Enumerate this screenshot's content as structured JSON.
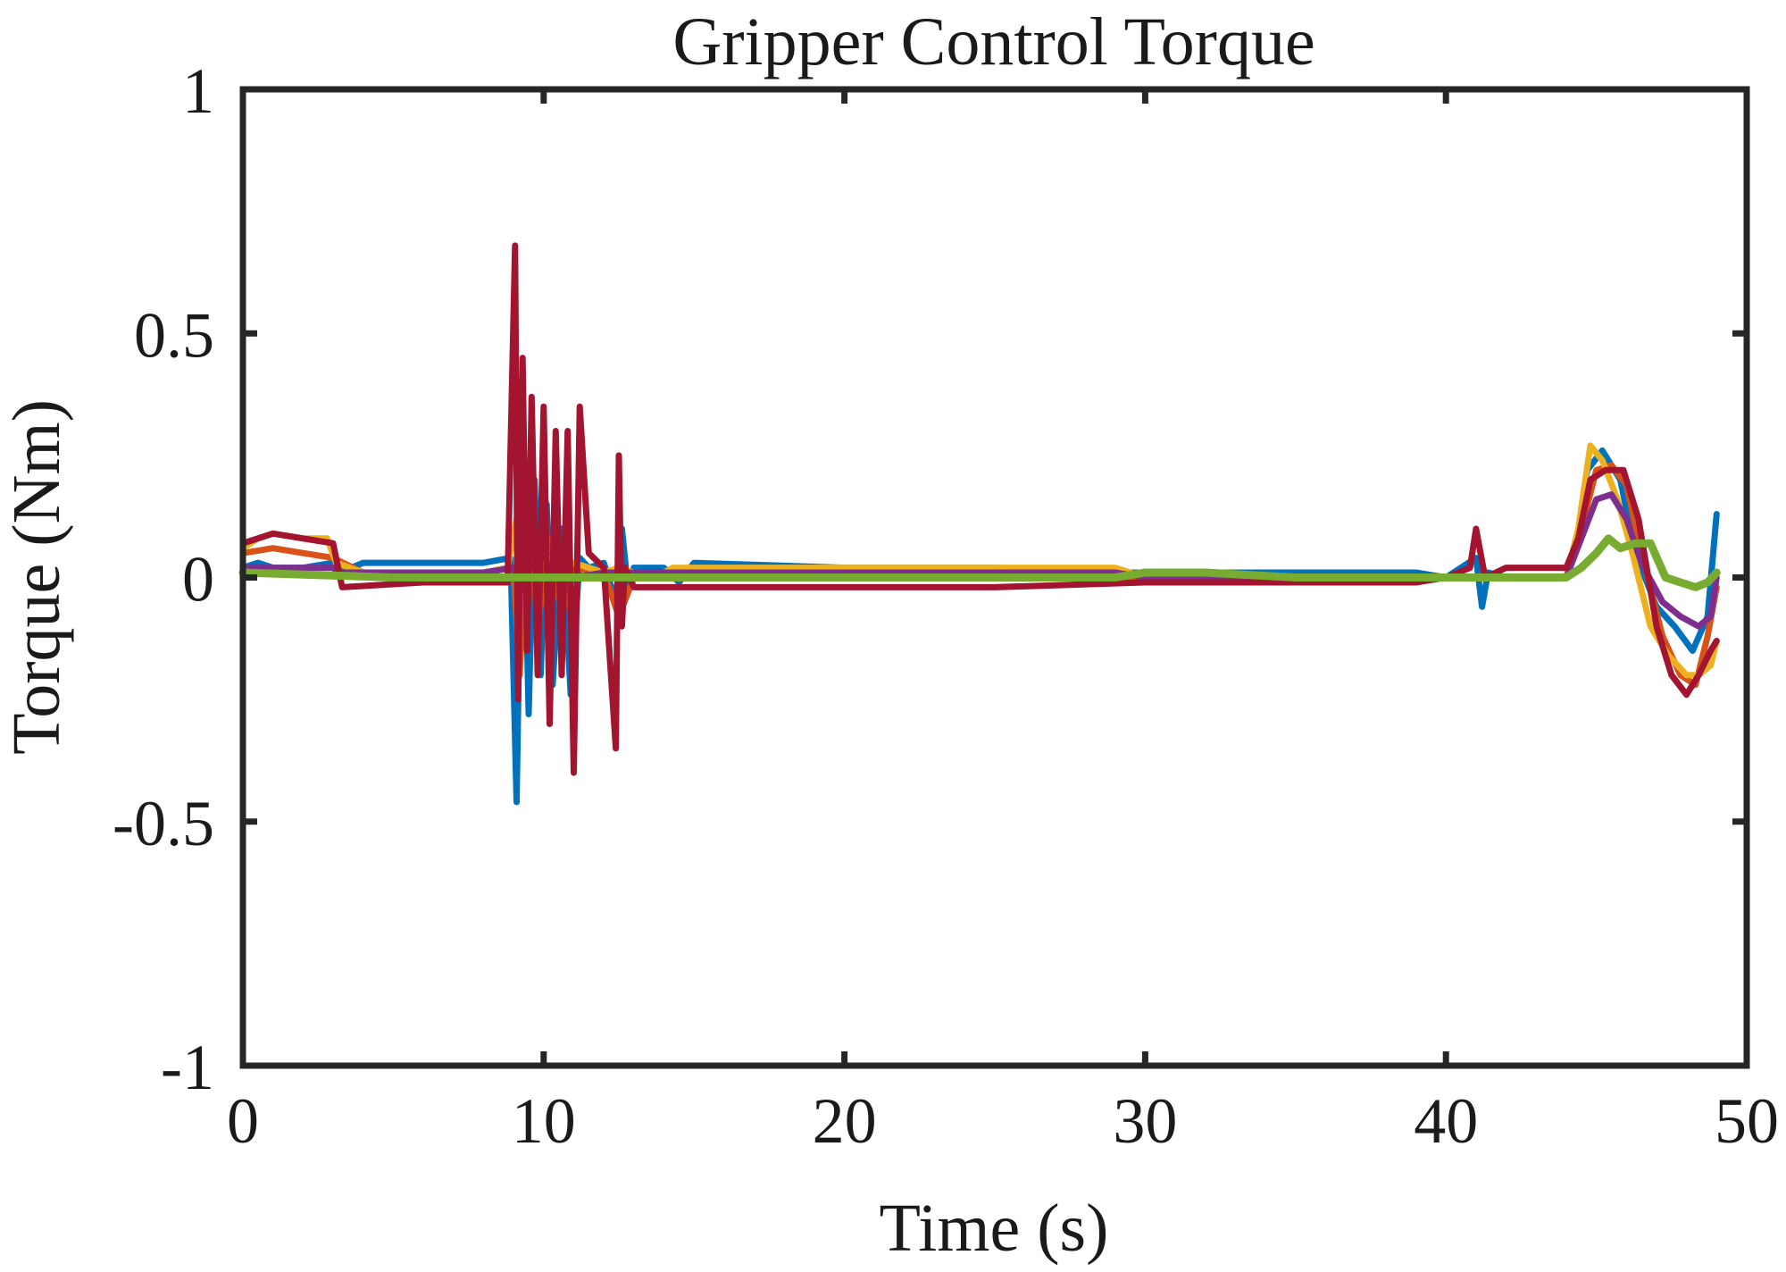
{
  "chart_data": {
    "type": "line",
    "title": "Gripper Control Torque",
    "xlabel": "Time (s)",
    "ylabel": "Torque (Nm)",
    "xlim": [
      0,
      50
    ],
    "ylim": [
      -1,
      1
    ],
    "xticks": [
      0,
      10,
      20,
      30,
      40,
      50
    ],
    "yticks": [
      -1,
      -0.5,
      0,
      0.5,
      1
    ],
    "xtick_labels": [
      "0",
      "10",
      "20",
      "30",
      "40",
      "50"
    ],
    "ytick_labels": [
      "-1",
      "-0.5",
      "0",
      "0.5",
      "1"
    ],
    "grid": false,
    "legend": "none",
    "series": [
      {
        "color": "#0072BD",
        "x": [
          0,
          0.5,
          1,
          2,
          3,
          3.2,
          4,
          6,
          8,
          8.9,
          9.1,
          9.3,
          9.5,
          9.7,
          9.9,
          10.1,
          10.3,
          10.6,
          10.9,
          11.2,
          11.5,
          12,
          12.4,
          12.6,
          12.8,
          13,
          14,
          14.5,
          15,
          20,
          25,
          29,
          30,
          35,
          39,
          40,
          41,
          41.2,
          41.4,
          42,
          44,
          44.3,
          44.7,
          45.2,
          45.8,
          46.3,
          47,
          47.6,
          48.2,
          48.7,
          49
        ],
        "y": [
          0.02,
          0.03,
          0.02,
          0.02,
          0.03,
          0.01,
          0.03,
          0.03,
          0.03,
          0.04,
          -0.46,
          0.3,
          -0.28,
          0.2,
          -0.2,
          0.15,
          -0.22,
          0.1,
          -0.24,
          0.04,
          0.02,
          0.03,
          -0.05,
          0.1,
          -0.02,
          0.02,
          0.02,
          -0.01,
          0.03,
          0.02,
          0.02,
          0.01,
          0.01,
          0.01,
          0.01,
          0.0,
          0.04,
          -0.06,
          0.01,
          0.0,
          0.0,
          0.05,
          0.22,
          0.26,
          0.2,
          0.05,
          -0.06,
          -0.1,
          -0.15,
          -0.08,
          0.13
        ]
      },
      {
        "color": "#D95319",
        "x": [
          0,
          1,
          2,
          3,
          4,
          8,
          9,
          9.2,
          9.5,
          9.8,
          10.2,
          10.6,
          11,
          12,
          12.5,
          13,
          20,
          30,
          40,
          44,
          44.5,
          45,
          45.5,
          46,
          46.5,
          47.2,
          47.8,
          48.3,
          48.7,
          49
        ],
        "y": [
          0.05,
          0.06,
          0.05,
          0.04,
          0.01,
          0.01,
          0.02,
          -0.2,
          0.15,
          -0.1,
          0.08,
          -0.08,
          0.02,
          0.01,
          -0.08,
          0.0,
          0.0,
          0.0,
          0.0,
          0.0,
          0.1,
          0.22,
          0.23,
          0.19,
          0.05,
          -0.12,
          -0.2,
          -0.22,
          -0.12,
          -0.02
        ]
      },
      {
        "color": "#EDB120",
        "x": [
          0,
          0.5,
          1,
          2,
          2.8,
          3.1,
          4,
          6,
          8,
          8.8,
          9.1,
          9.3,
          9.6,
          9.9,
          10.3,
          10.7,
          11,
          11.5,
          12,
          12.5,
          13,
          14,
          14.3,
          15,
          20,
          25,
          29,
          30,
          35,
          40,
          44,
          44.4,
          44.8,
          45.2,
          45.7,
          46.2,
          46.8,
          47.4,
          48,
          48.4,
          48.8,
          49
        ],
        "y": [
          0.06,
          0.08,
          0.09,
          0.08,
          0.08,
          0.03,
          0.01,
          0.01,
          0.01,
          0.02,
          0.12,
          0.08,
          0.05,
          0.03,
          0.04,
          0.02,
          0.03,
          0.02,
          0.01,
          0.02,
          0.01,
          0.01,
          0.02,
          0.02,
          0.02,
          0.02,
          0.02,
          0.0,
          0.0,
          0.0,
          0.0,
          0.1,
          0.27,
          0.24,
          0.16,
          0.05,
          -0.1,
          -0.16,
          -0.2,
          -0.2,
          -0.18,
          -0.13
        ]
      },
      {
        "color": "#7E2F8E",
        "x": [
          0,
          1,
          2,
          3,
          3.2,
          4,
          8,
          9,
          9.2,
          9.5,
          10,
          10.5,
          11,
          12,
          13,
          20,
          25,
          29,
          30,
          40,
          44,
          44.5,
          45,
          45.5,
          46,
          46.5,
          47.2,
          47.8,
          48.4,
          48.8,
          49
        ],
        "y": [
          0.02,
          0.02,
          0.02,
          0.02,
          0.01,
          0.01,
          0.01,
          0.02,
          -0.03,
          0.03,
          0.0,
          0.01,
          0.0,
          0.01,
          0.01,
          0.01,
          0.01,
          0.01,
          0.0,
          0.0,
          0.0,
          0.08,
          0.16,
          0.17,
          0.12,
          0.03,
          -0.05,
          -0.08,
          -0.1,
          -0.08,
          0.0
        ]
      },
      {
        "color": "#A2142F",
        "x": [
          0,
          1,
          2,
          3,
          3.3,
          6,
          8.8,
          9.05,
          9.15,
          9.3,
          9.45,
          9.6,
          9.8,
          10,
          10.2,
          10.4,
          10.6,
          10.8,
          11,
          11.2,
          11.5,
          12,
          12.4,
          12.5,
          12.6,
          12.7,
          13,
          15,
          20,
          25,
          30,
          35,
          39,
          40,
          40.8,
          41,
          41.3,
          42,
          44,
          44.4,
          44.8,
          45.3,
          45.9,
          46.4,
          47,
          47.5,
          48,
          48.4,
          48.8,
          49
        ],
        "y": [
          0.07,
          0.09,
          0.08,
          0.07,
          -0.02,
          -0.01,
          -0.01,
          0.68,
          -0.25,
          0.45,
          -0.15,
          0.37,
          -0.2,
          0.35,
          -0.3,
          0.3,
          -0.2,
          0.3,
          -0.4,
          0.35,
          0.05,
          0.02,
          -0.35,
          0.25,
          -0.1,
          0.02,
          -0.02,
          -0.02,
          -0.02,
          -0.02,
          -0.01,
          -0.01,
          -0.01,
          0.0,
          0.02,
          0.1,
          0.0,
          0.02,
          0.02,
          0.08,
          0.2,
          0.22,
          0.22,
          0.12,
          -0.1,
          -0.2,
          -0.24,
          -0.2,
          -0.15,
          -0.13
        ]
      },
      {
        "color": "#77AC30",
        "x": [
          0,
          5,
          10,
          15,
          20,
          25,
          29,
          30,
          32,
          35,
          40,
          44,
          44.5,
          45,
          45.4,
          45.8,
          46.3,
          46.8,
          47.3,
          47.8,
          48.3,
          48.7,
          49
        ],
        "y": [
          0.01,
          0.0,
          0.0,
          0.0,
          0.0,
          0.0,
          0.0,
          0.01,
          0.01,
          0.0,
          0.0,
          0.0,
          0.02,
          0.05,
          0.08,
          0.06,
          0.07,
          0.07,
          0.0,
          -0.01,
          -0.02,
          -0.01,
          0.01
        ]
      }
    ]
  }
}
